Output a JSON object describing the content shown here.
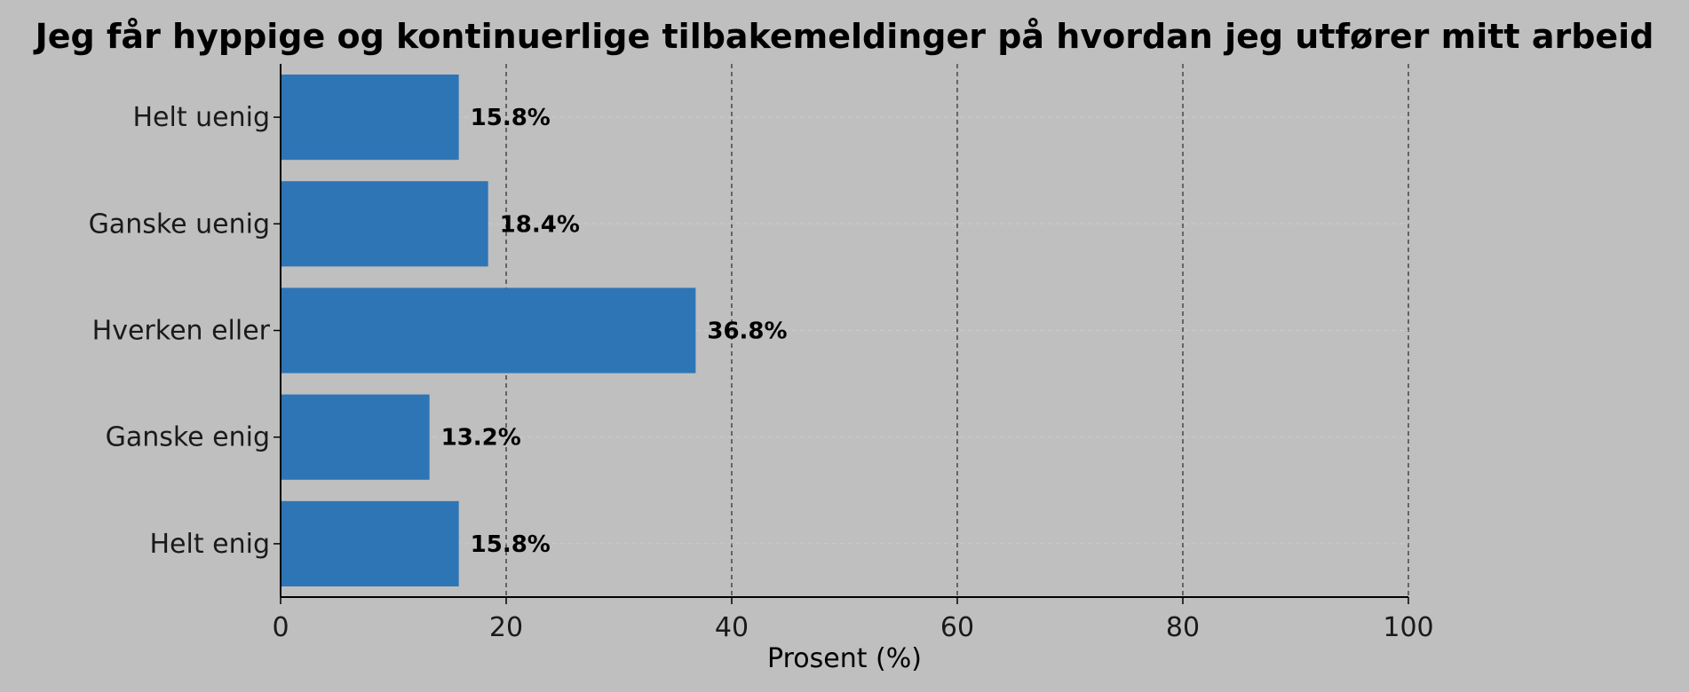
{
  "chart_data": {
    "type": "bar",
    "orientation": "horizontal",
    "title": "Jeg får hyppige og kontinuerlige tilbakemeldinger på hvordan jeg utfører mitt arbeid",
    "xlabel": "Prosent (%)",
    "ylabel": "",
    "categories": [
      "Helt uenig",
      "Ganske uenig",
      "Hverken eller",
      "Ganske enig",
      "Helt enig"
    ],
    "values": [
      15.8,
      18.4,
      36.8,
      13.2,
      15.8
    ],
    "value_labels": [
      "15.8%",
      "18.4%",
      "36.8%",
      "13.2%",
      "15.8%"
    ],
    "xlim": [
      0,
      100
    ],
    "xticks": [
      0,
      20,
      40,
      60,
      80,
      100
    ],
    "xtick_labels": [
      "0",
      "20",
      "40",
      "60",
      "80",
      "100"
    ],
    "grid": "vertical dashed",
    "colors": {
      "background": "#bfbfbf",
      "bar": "#2e75b6",
      "grid": "#333333",
      "axis": "#000000"
    }
  }
}
